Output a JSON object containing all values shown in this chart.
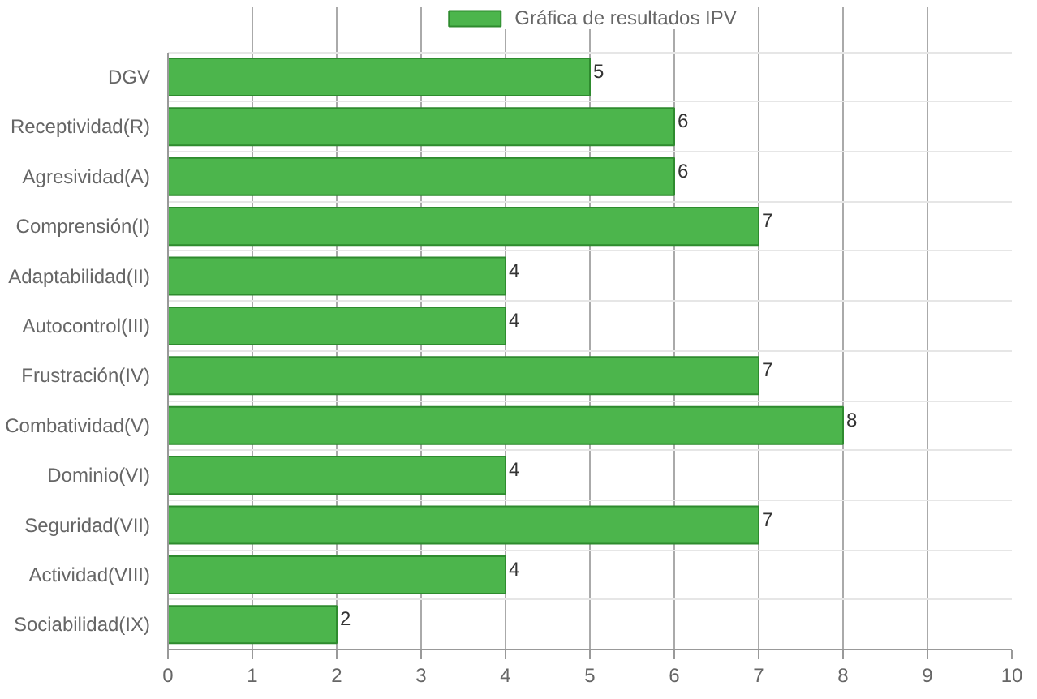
{
  "chart_data": {
    "type": "bar",
    "orientation": "horizontal",
    "categories": [
      "DGV",
      "Receptividad(R)",
      "Agresividad(A)",
      "Comprensión(I)",
      "Adaptabilidad(II)",
      "Autocontrol(III)",
      "Frustración(IV)",
      "Combatividad(V)",
      "Dominio(VI)",
      "Seguridad(VII)",
      "Actividad(VIII)",
      "Sociabilidad(IX)"
    ],
    "series": [
      {
        "name": "Gráfica de resultados IPV",
        "color": "#4cb54c",
        "values": [
          5,
          6,
          6,
          7,
          4,
          4,
          7,
          8,
          4,
          7,
          4,
          2
        ]
      }
    ],
    "xlim": [
      0,
      10
    ],
    "xticks": [
      0,
      1,
      2,
      3,
      4,
      5,
      6,
      7,
      8,
      9,
      10
    ],
    "grid": true,
    "legend": "top",
    "data_labels": true
  }
}
